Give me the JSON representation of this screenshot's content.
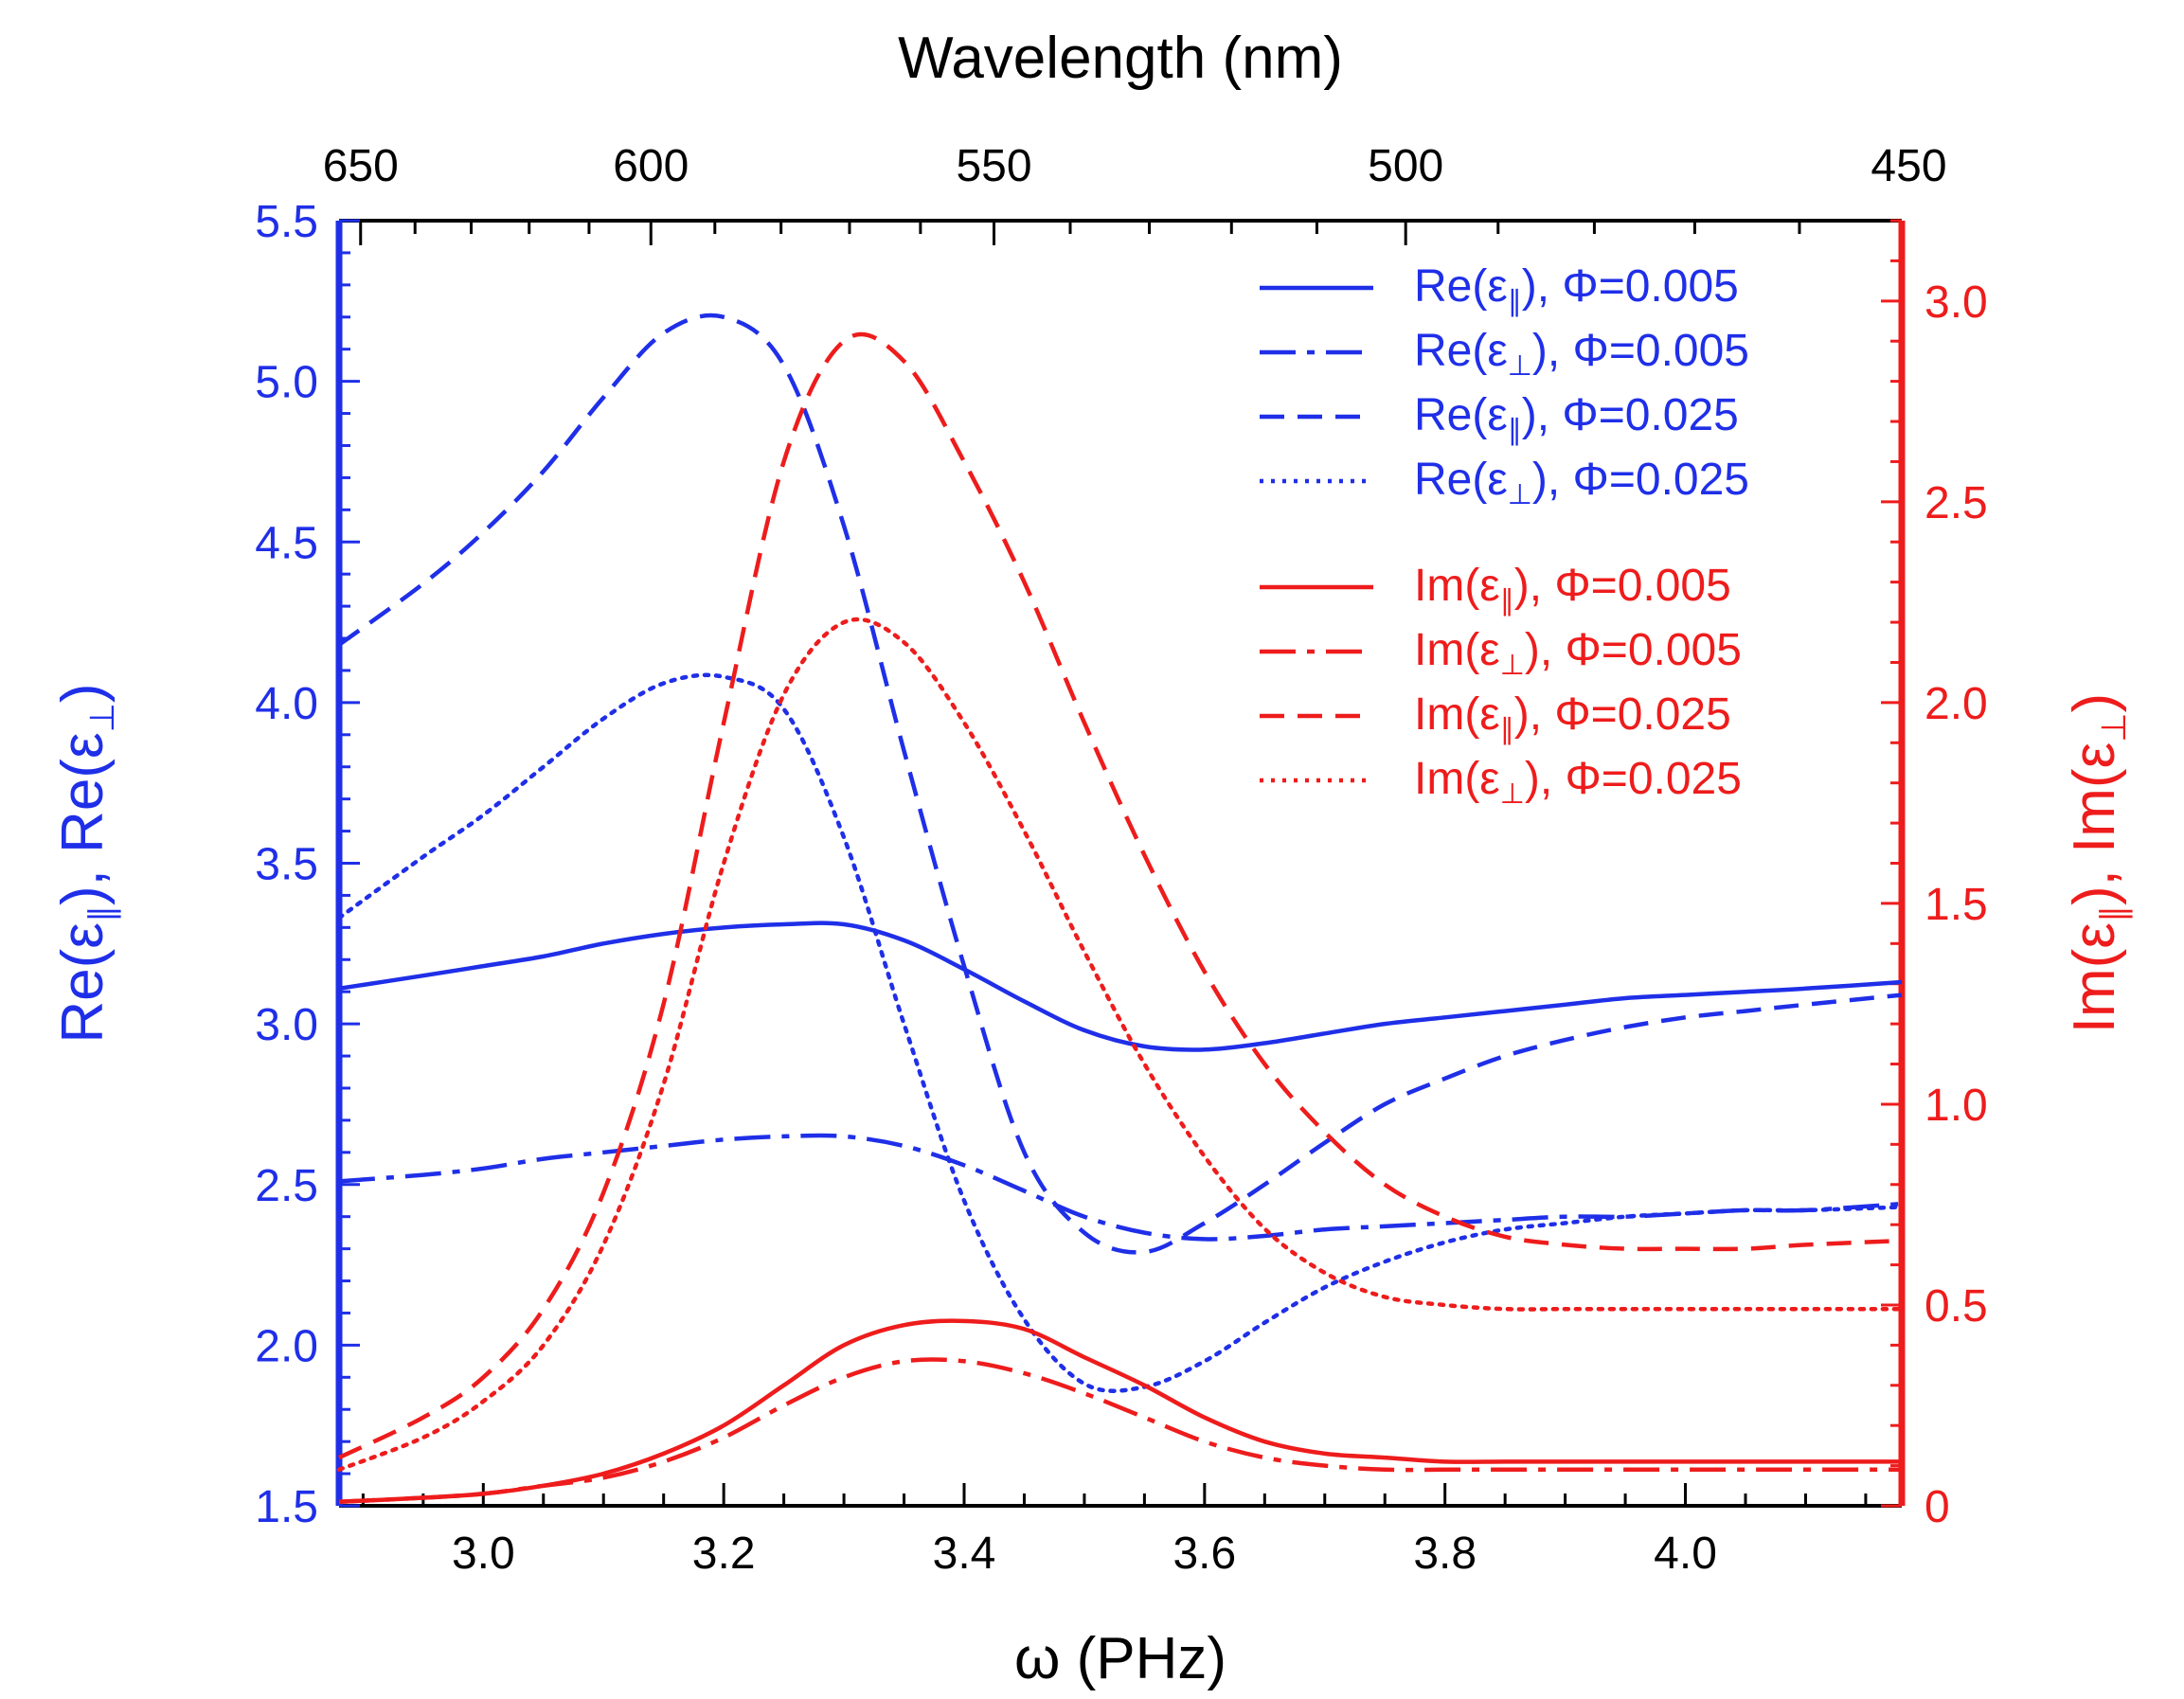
{
  "chart_data": {
    "type": "line",
    "x_axis": {
      "label": "ω (PHz)",
      "range": [
        2.88,
        4.18
      ],
      "ticks": [
        3.0,
        3.2,
        3.4,
        3.6,
        3.8,
        4.0
      ],
      "tick_labels": [
        "3.0",
        "3.2",
        "3.4",
        "3.6",
        "3.8",
        "4.0"
      ]
    },
    "top_axis": {
      "label": "Wavelength (nm)",
      "ticks": [
        650,
        600,
        550,
        500,
        450
      ],
      "tick_labels": [
        "650",
        "600",
        "550",
        "500",
        "450"
      ]
    },
    "left_axis": {
      "label": "Re(ε∥),   Re(ε⊥)",
      "label_parts": [
        "Re(ε",
        "∥",
        "),   Re(ε",
        "⊥",
        ")"
      ],
      "range": [
        1.5,
        5.5
      ],
      "ticks": [
        1.5,
        2.0,
        2.5,
        3.0,
        3.5,
        4.0,
        4.5,
        5.0,
        5.5
      ],
      "tick_labels": [
        "1.5",
        "2.0",
        "2.5",
        "3.0",
        "3.5",
        "4.0",
        "4.5",
        "5.0",
        "5.5"
      ],
      "color": "#1f2fe8"
    },
    "right_axis": {
      "label": "Im(ε∥),   Im(ε⊥)",
      "label_parts": [
        "Im(ε",
        "∥",
        "),   Im(ε",
        "⊥",
        ")"
      ],
      "range": [
        0,
        3.2
      ],
      "ticks": [
        0,
        0.5,
        1.0,
        1.5,
        2.0,
        2.5,
        3.0
      ],
      "tick_labels": [
        "0",
        "0.5",
        "1.0",
        "1.5",
        "2.0",
        "2.5",
        "3.0"
      ],
      "color": "#ee1c1c"
    },
    "x": [
      2.88,
      2.95,
      3.0,
      3.05,
      3.1,
      3.15,
      3.2,
      3.25,
      3.3,
      3.35,
      3.4,
      3.45,
      3.5,
      3.55,
      3.6,
      3.65,
      3.7,
      3.75,
      3.8,
      3.85,
      3.9,
      3.95,
      4.0,
      4.05,
      4.1,
      4.18
    ],
    "series": [
      {
        "name": "Re(ε∥), Φ=0.005",
        "axis": "left",
        "color": "#1f2fe8",
        "dash": "solid",
        "values": [
          3.11,
          3.15,
          3.18,
          3.21,
          3.25,
          3.28,
          3.3,
          3.31,
          3.31,
          3.26,
          3.17,
          3.07,
          2.98,
          2.93,
          2.92,
          2.94,
          2.97,
          3.0,
          3.02,
          3.04,
          3.06,
          3.08,
          3.09,
          3.1,
          3.11,
          3.13
        ]
      },
      {
        "name": "Re(ε⊥), Φ=0.005",
        "axis": "left",
        "color": "#1f2fe8",
        "dash": "dashdot",
        "values": [
          2.51,
          2.53,
          2.55,
          2.58,
          2.6,
          2.62,
          2.64,
          2.65,
          2.65,
          2.62,
          2.56,
          2.48,
          2.4,
          2.35,
          2.33,
          2.34,
          2.36,
          2.37,
          2.38,
          2.39,
          2.4,
          2.4,
          2.41,
          2.42,
          2.42,
          2.44
        ]
      },
      {
        "name": "Re(ε∥), Φ=0.025",
        "axis": "left",
        "color": "#1f2fe8",
        "dash": "dashed",
        "values": [
          4.18,
          4.37,
          4.53,
          4.72,
          4.95,
          5.15,
          5.2,
          5.05,
          4.55,
          3.85,
          3.18,
          2.6,
          2.35,
          2.29,
          2.38,
          2.5,
          2.63,
          2.75,
          2.83,
          2.9,
          2.95,
          2.99,
          3.02,
          3.04,
          3.06,
          3.09
        ]
      },
      {
        "name": "Re(ε⊥), Φ=0.025",
        "axis": "left",
        "color": "#1f2fe8",
        "dash": "dotted",
        "values": [
          3.33,
          3.52,
          3.65,
          3.8,
          3.95,
          4.06,
          4.08,
          3.98,
          3.58,
          3.0,
          2.45,
          2.08,
          1.88,
          1.87,
          1.95,
          2.07,
          2.18,
          2.26,
          2.32,
          2.36,
          2.38,
          2.4,
          2.41,
          2.42,
          2.42,
          2.43
        ]
      },
      {
        "name": "Im(ε∥), Φ=0.005",
        "axis": "right",
        "color": "#ee1c1c",
        "dash": "solid",
        "values": [
          0.01,
          0.02,
          0.03,
          0.05,
          0.08,
          0.13,
          0.2,
          0.3,
          0.4,
          0.45,
          0.46,
          0.44,
          0.37,
          0.3,
          0.22,
          0.16,
          0.13,
          0.12,
          0.11,
          0.11,
          0.11,
          0.11,
          0.11,
          0.11,
          0.11,
          0.11
        ]
      },
      {
        "name": "Im(ε⊥), Φ=0.005",
        "axis": "right",
        "color": "#ee1c1c",
        "dash": "dashdot",
        "values": [
          0.01,
          0.02,
          0.03,
          0.05,
          0.07,
          0.11,
          0.17,
          0.25,
          0.32,
          0.36,
          0.36,
          0.33,
          0.28,
          0.22,
          0.16,
          0.12,
          0.1,
          0.09,
          0.09,
          0.09,
          0.09,
          0.09,
          0.09,
          0.09,
          0.09,
          0.09
        ]
      },
      {
        "name": "Im(ε∥), Φ=0.025",
        "axis": "right",
        "color": "#ee1c1c",
        "dash": "dashed",
        "values": [
          0.12,
          0.22,
          0.32,
          0.49,
          0.78,
          1.25,
          1.95,
          2.6,
          2.9,
          2.85,
          2.6,
          2.3,
          1.95,
          1.62,
          1.33,
          1.1,
          0.93,
          0.8,
          0.72,
          0.67,
          0.65,
          0.64,
          0.64,
          0.64,
          0.65,
          0.66
        ]
      },
      {
        "name": "Im(ε⊥), Φ=0.025",
        "axis": "right",
        "color": "#ee1c1c",
        "dash": "dotted",
        "values": [
          0.09,
          0.17,
          0.26,
          0.4,
          0.65,
          1.05,
          1.6,
          2.02,
          2.2,
          2.15,
          1.95,
          1.68,
          1.38,
          1.1,
          0.87,
          0.69,
          0.58,
          0.52,
          0.5,
          0.49,
          0.49,
          0.49,
          0.49,
          0.49,
          0.49,
          0.49
        ]
      }
    ],
    "legend": {
      "placement": "top-right",
      "entries": [
        {
          "prefix": "Re(ε",
          "sub": "∥",
          "suffix": "), Φ=0.005",
          "color": "#1f2fe8",
          "dash": "solid"
        },
        {
          "prefix": "Re(ε",
          "sub": "⊥",
          "suffix": "), Φ=0.005",
          "color": "#1f2fe8",
          "dash": "dashdot"
        },
        {
          "prefix": "Re(ε",
          "sub": "∥",
          "suffix": "), Φ=0.025",
          "color": "#1f2fe8",
          "dash": "dashed"
        },
        {
          "prefix": "Re(ε",
          "sub": "⊥",
          "suffix": "), Φ=0.025",
          "color": "#1f2fe8",
          "dash": "dotted"
        },
        {
          "prefix": "Im(ε",
          "sub": "∥",
          "suffix": "), Φ=0.005",
          "color": "#ee1c1c",
          "dash": "solid"
        },
        {
          "prefix": "Im(ε",
          "sub": "⊥",
          "suffix": "), Φ=0.005",
          "color": "#ee1c1c",
          "dash": "dashdot"
        },
        {
          "prefix": "Im(ε",
          "sub": "∥",
          "suffix": "), Φ=0.025",
          "color": "#ee1c1c",
          "dash": "dashed"
        },
        {
          "prefix": "Im(ε",
          "sub": "⊥",
          "suffix": "), Φ=0.025",
          "color": "#ee1c1c",
          "dash": "dotted"
        }
      ]
    }
  }
}
